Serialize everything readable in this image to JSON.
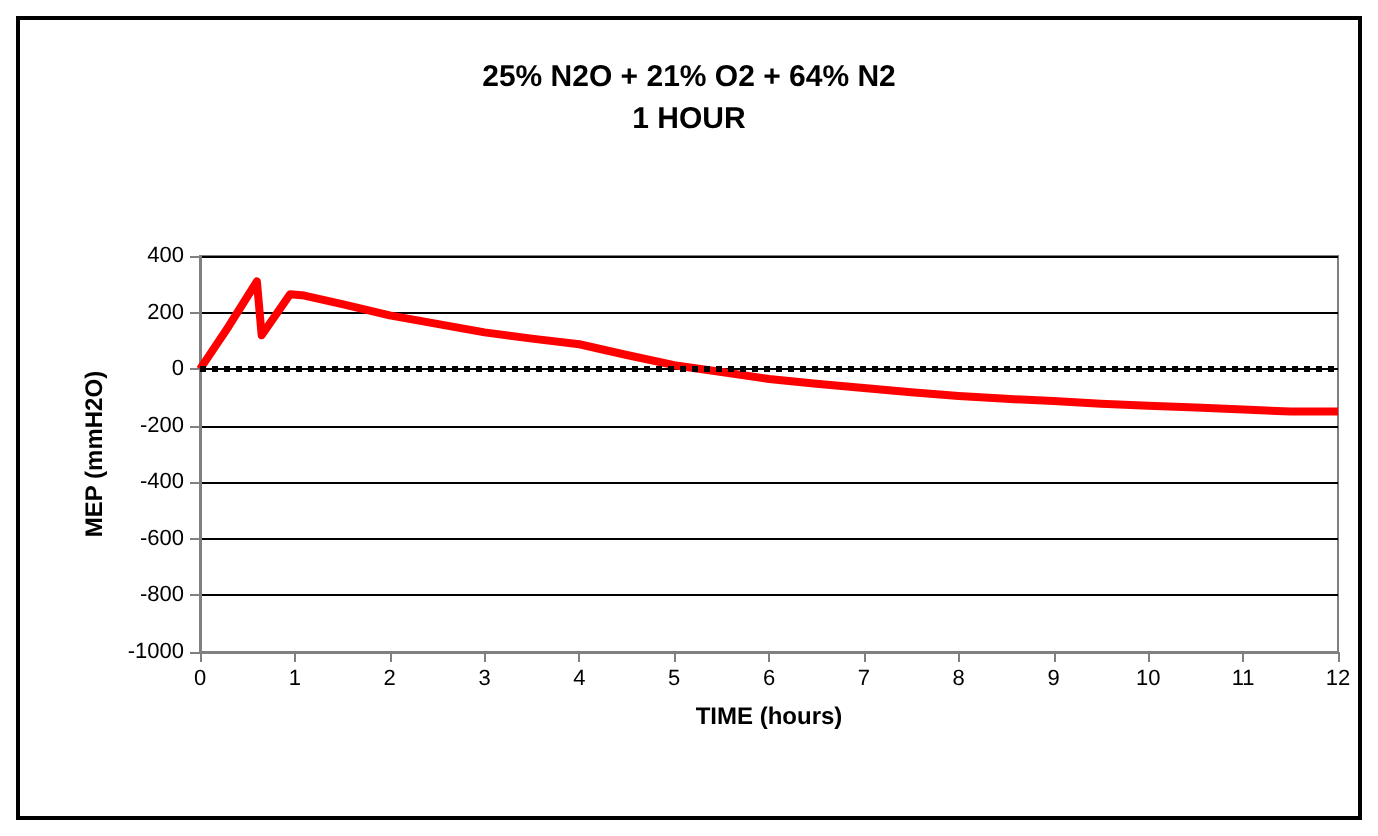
{
  "chart_data": {
    "type": "line",
    "title": "25% N2O + 21% O2 + 64% N2",
    "subtitle": "1 HOUR",
    "xlabel": "TIME (hours)",
    "ylabel": "MEP (mmH2O)",
    "x": [
      0,
      0.3,
      0.6,
      0.65,
      0.95,
      1.1,
      1.5,
      2,
      2.5,
      3,
      3.5,
      4,
      4.5,
      5,
      5.5,
      6,
      6.5,
      7,
      7.5,
      8,
      8.5,
      9,
      9.5,
      10,
      10.5,
      11,
      11.5,
      12
    ],
    "series": [
      {
        "color": "#ff0000",
        "values": [
          0,
          150,
          310,
          120,
          265,
          260,
          230,
          190,
          160,
          130,
          108,
          88,
          50,
          14,
          -10,
          -35,
          -52,
          -67,
          -82,
          -95,
          -105,
          -113,
          -122,
          -129,
          -136,
          -143,
          -150,
          -150
        ]
      }
    ],
    "xlim": [
      0,
      12
    ],
    "xticks": [
      0,
      1,
      2,
      3,
      4,
      5,
      6,
      7,
      8,
      9,
      10,
      11,
      12
    ],
    "ylim": [
      -1000,
      400
    ],
    "yticks": [
      -1000,
      -800,
      -600,
      -400,
      -200,
      0,
      200,
      400
    ],
    "grid": "y",
    "marker": "none",
    "line_style": "solid",
    "ref_lines": [
      {
        "axis": "y",
        "value": 0,
        "color": "#000000",
        "line_style": "dotted"
      }
    ]
  }
}
